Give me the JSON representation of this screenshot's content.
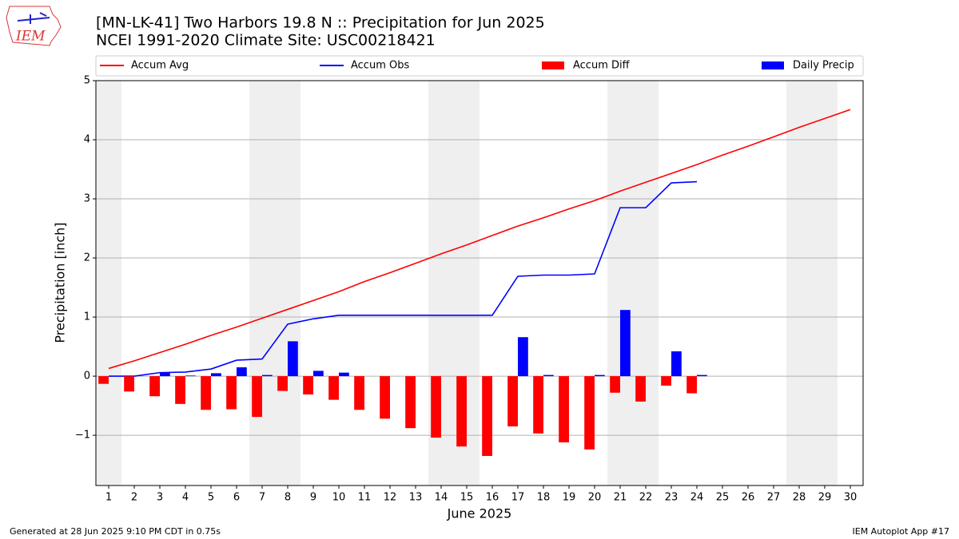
{
  "chart_data": {
    "type": "combo",
    "title": "[MN-LK-41] Two Harbors 19.8 N :: Precipitation for Jun 2025",
    "subtitle": "NCEI 1991-2020 Climate Site: USC00218421",
    "logo_text": "IEM",
    "x_label": "June 2025",
    "y_label": "Precipitation [inch]",
    "footer_left": "Generated at 28 Jun 2025 9:10 PM CDT in 0.75s",
    "footer_right": "IEM Autoplot App #17",
    "x": [
      1,
      2,
      3,
      4,
      5,
      6,
      7,
      8,
      9,
      10,
      11,
      12,
      13,
      14,
      15,
      16,
      17,
      18,
      19,
      20,
      21,
      22,
      23,
      24,
      25,
      26,
      27,
      28,
      29,
      30
    ],
    "xlim": [
      0.5,
      30.5
    ],
    "xticks": [
      1,
      2,
      3,
      4,
      5,
      6,
      7,
      8,
      9,
      10,
      11,
      12,
      13,
      14,
      15,
      16,
      17,
      18,
      19,
      20,
      21,
      22,
      23,
      24,
      25,
      26,
      27,
      28,
      29,
      30
    ],
    "ylim": [
      -1.85,
      5
    ],
    "yticks": [
      {
        "value": -1,
        "label": "−1"
      },
      0,
      1,
      2,
      3,
      4,
      5
    ],
    "grid": true,
    "shaded_x_ranges": [
      [
        0.5,
        1.5
      ],
      [
        6.5,
        8.5
      ],
      [
        13.5,
        15.5
      ],
      [
        20.5,
        22.5
      ],
      [
        27.5,
        29.5
      ]
    ],
    "series": [
      {
        "name": "Accum Avg",
        "type": "line",
        "color": "#ff0000",
        "values": [
          0.13,
          0.26,
          0.4,
          0.54,
          0.69,
          0.83,
          0.98,
          1.13,
          1.28,
          1.43,
          1.6,
          1.75,
          1.91,
          2.07,
          2.22,
          2.38,
          2.54,
          2.68,
          2.83,
          2.97,
          3.13,
          3.28,
          3.43,
          3.58,
          3.74,
          3.89,
          4.05,
          4.21,
          4.36,
          4.51
        ]
      },
      {
        "name": "Accum Obs",
        "type": "line",
        "color": "#0000ff",
        "values": [
          0.0,
          0.0,
          0.06,
          0.07,
          0.12,
          0.27,
          0.29,
          0.88,
          0.97,
          1.03,
          1.03,
          1.03,
          1.03,
          1.03,
          1.03,
          1.03,
          1.69,
          1.71,
          1.71,
          1.73,
          2.85,
          2.85,
          3.27,
          3.29,
          null,
          null,
          null,
          null,
          null,
          null
        ]
      },
      {
        "name": "Accum Diff",
        "type": "bar",
        "color": "#ff0000",
        "values": [
          -0.13,
          -0.26,
          -0.34,
          -0.47,
          -0.57,
          -0.56,
          -0.69,
          -0.25,
          -0.31,
          -0.4,
          -0.57,
          -0.72,
          -0.88,
          -1.04,
          -1.19,
          -1.35,
          -0.85,
          -0.97,
          -1.12,
          -1.24,
          -0.28,
          -0.43,
          -0.16,
          -0.29,
          null,
          null,
          null,
          null,
          null,
          null
        ]
      },
      {
        "name": "Daily Precip",
        "type": "bar",
        "color": "#0000ff",
        "values": [
          0.0,
          0.0,
          0.06,
          0.01,
          0.05,
          0.15,
          0.02,
          0.59,
          0.09,
          0.06,
          0,
          0,
          0,
          0,
          0,
          0,
          0.66,
          0.02,
          0,
          0.02,
          1.12,
          0,
          0.42,
          0.02,
          null,
          null,
          null,
          null,
          null,
          null
        ]
      }
    ]
  }
}
